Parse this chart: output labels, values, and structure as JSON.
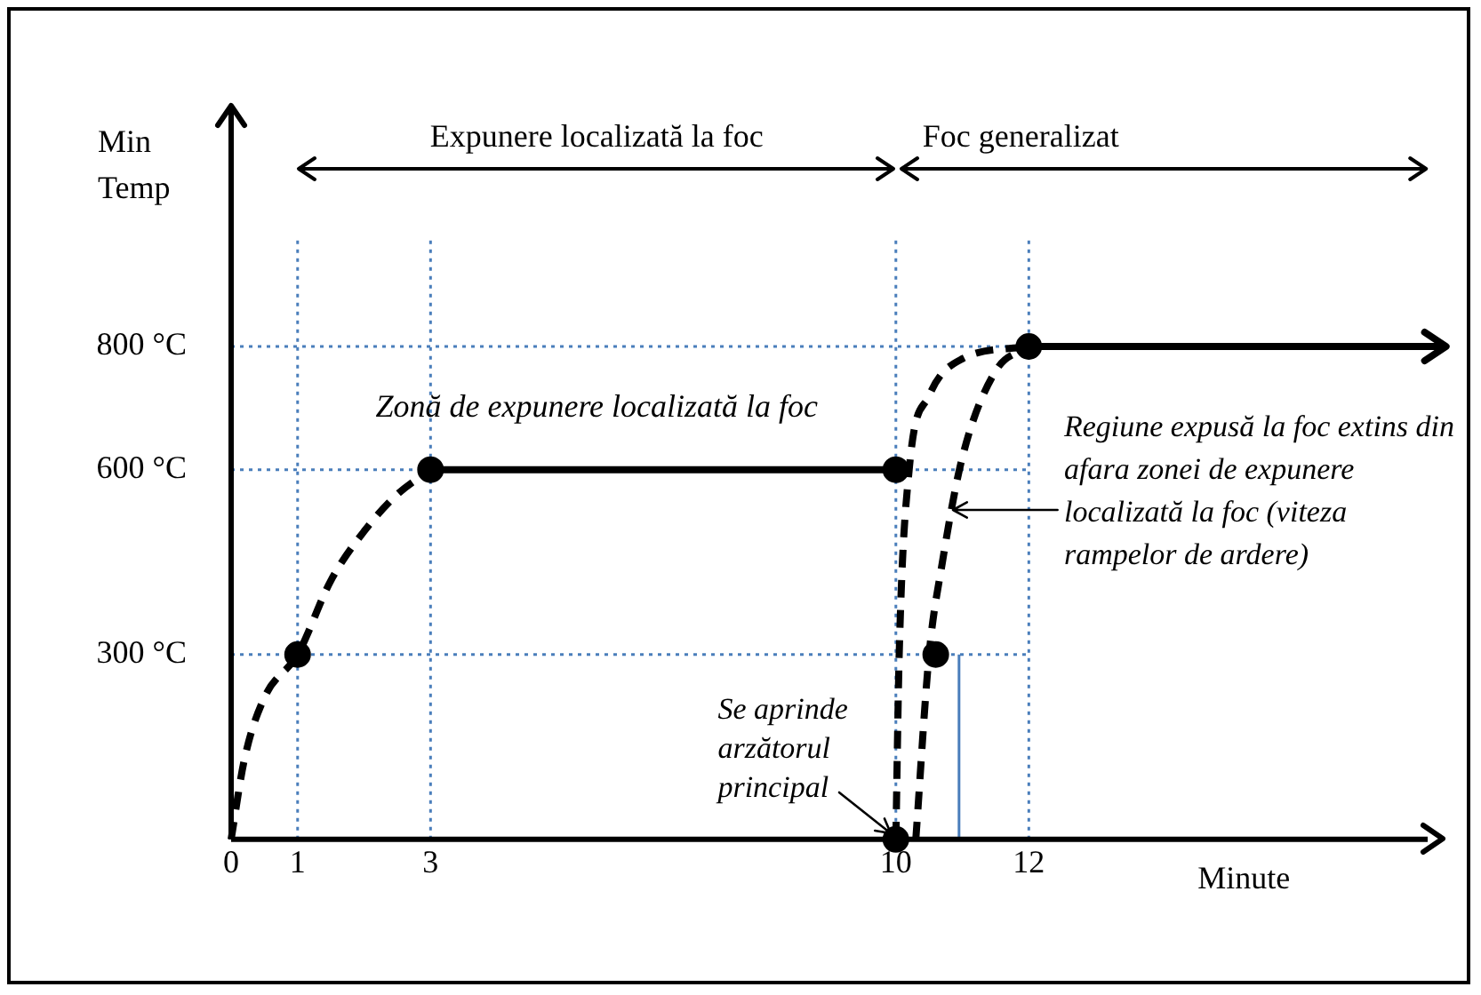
{
  "chart_data": {
    "type": "line",
    "xlabel": "Minute",
    "ylabel": "Min Temp",
    "xlim": [
      0,
      18
    ],
    "ylim": [
      0,
      800
    ],
    "xticks": [
      0,
      1,
      3,
      10,
      12
    ],
    "yticks": [
      {
        "value": 300,
        "label": "300 °C"
      },
      {
        "value": 600,
        "label": "600 °C"
      },
      {
        "value": 800,
        "label": "800 °C"
      }
    ],
    "grid": false,
    "legend": false,
    "marker": "none",
    "series": [
      {
        "color": "#000000",
        "line_style": "dashed",
        "x": [
          0,
          0.2,
          0.5,
          1,
          1.5,
          2,
          2.5,
          3
        ],
        "values": [
          0,
          130,
          230,
          300,
          420,
          500,
          560,
          600
        ]
      },
      {
        "color": "#000000",
        "line_style": "solid",
        "x": [
          3,
          10
        ],
        "values": [
          600,
          600
        ]
      },
      {
        "color": "#000000",
        "line_style": "dashed",
        "x": [
          10,
          10.05,
          10.2,
          10.5,
          11,
          12
        ],
        "values": [
          0,
          300,
          600,
          720,
          780,
          800
        ]
      },
      {
        "color": "#000000",
        "line_style": "dashed",
        "x": [
          10.3,
          10.5,
          10.7,
          11,
          11.5,
          12
        ],
        "values": [
          0,
          300,
          450,
          620,
          760,
          800
        ]
      },
      {
        "color": "#4a7ebb",
        "line_style": "solid",
        "x": [
          10.95,
          10.95
        ],
        "values": [
          0,
          300
        ]
      },
      {
        "type": "scatter",
        "marker": "circle",
        "color": "#000000",
        "x": [
          1,
          3,
          10,
          10,
          10.6,
          12
        ],
        "values": [
          300,
          600,
          600,
          0,
          300,
          800
        ]
      }
    ],
    "ref_lines": [
      {
        "axis": "x",
        "value": 1,
        "color": "#4a7ebb",
        "line_style": "dotted"
      },
      {
        "axis": "x",
        "value": 3,
        "color": "#4a7ebb",
        "line_style": "dotted"
      },
      {
        "axis": "x",
        "value": 10,
        "color": "#4a7ebb",
        "line_style": "dotted"
      },
      {
        "axis": "x",
        "value": 12,
        "color": "#4a7ebb",
        "line_style": "dotted"
      },
      {
        "axis": "y",
        "value": 300,
        "color": "#4a7ebb",
        "line_style": "dotted"
      },
      {
        "axis": "y",
        "value": 600,
        "color": "#4a7ebb",
        "line_style": "dotted"
      },
      {
        "axis": "y",
        "value": 800,
        "color": "#4a7ebb",
        "line_style": "dotted"
      }
    ],
    "annotations": [
      "Expunere localizată la foc",
      "Foc generalizat",
      "Zonă de expunere localizată la foc",
      {
        "text": "Se aprinde arzătorul principal",
        "x": 10,
        "y": 0
      },
      "Regiune expusă la foc extins din afara zonei de expunere localizată la foc (viteza rampelor de ardere)"
    ]
  }
}
